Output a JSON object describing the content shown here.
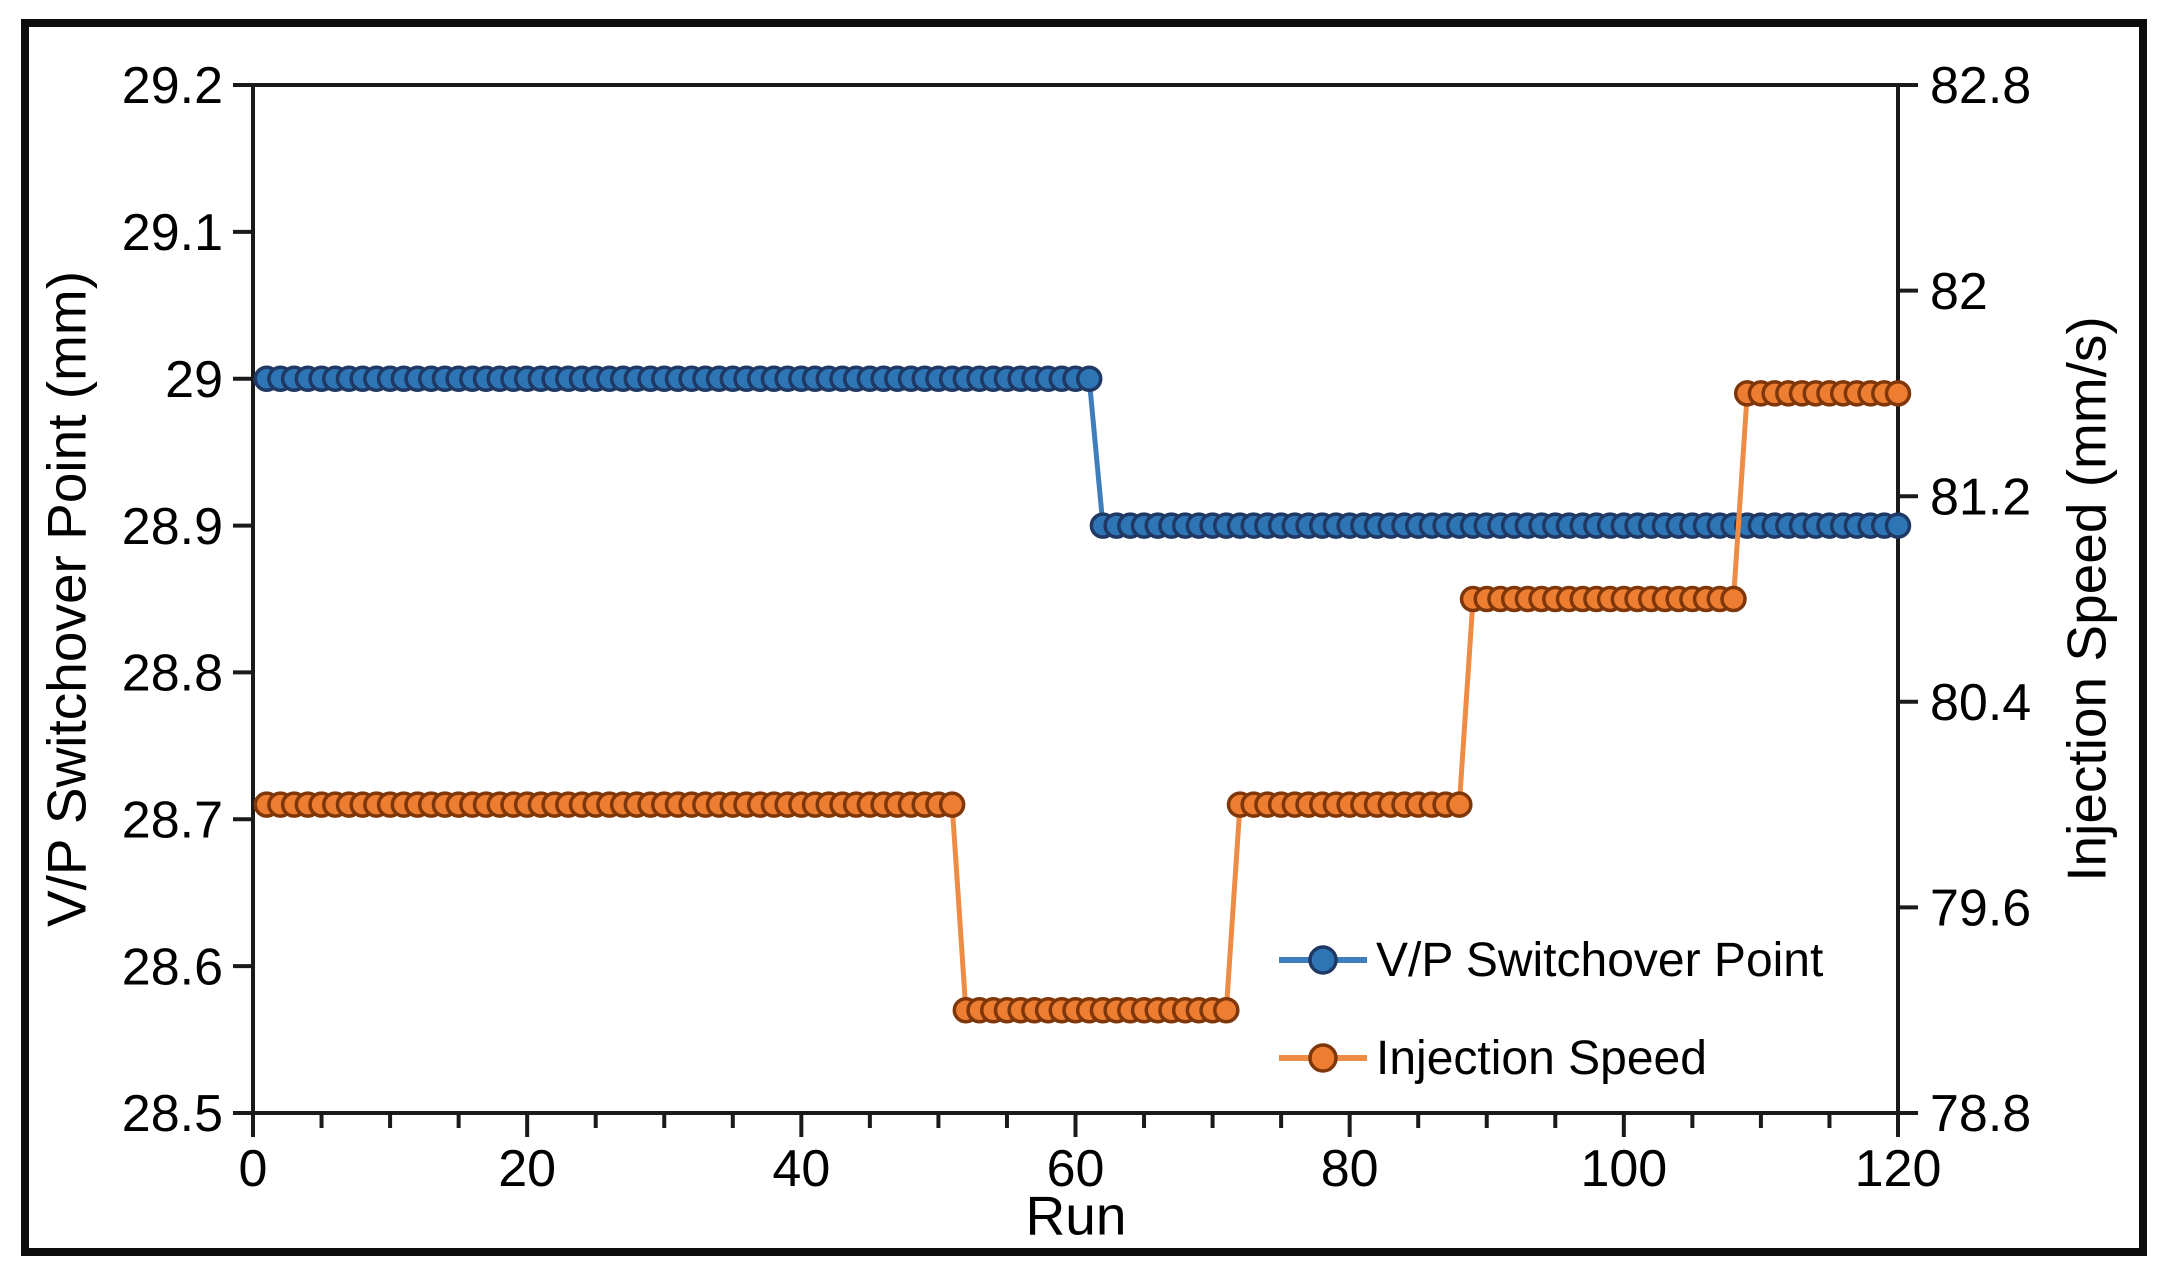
{
  "chart_data": {
    "type": "line",
    "title": "",
    "x": {
      "label": "Run",
      "min": 0,
      "max": 120,
      "major_ticks": [
        0,
        20,
        40,
        60,
        80,
        100,
        120
      ],
      "minor_tick_step": 5
    },
    "y_left": {
      "label": "V/P Switchover Point (mm)",
      "min": 28.5,
      "max": 29.2,
      "ticks": [
        "29.2",
        "29.1",
        "29",
        "28.9",
        "28.8",
        "28.7",
        "28.6",
        "28.5"
      ]
    },
    "y_right": {
      "label": "Injection Speed (mm/s)",
      "min": 78.8,
      "max": 82.8,
      "ticks": [
        "82.8",
        "82",
        "81.2",
        "80.4",
        "79.6",
        "78.8"
      ]
    },
    "grid": "off",
    "legend_position": "inside-lower-right",
    "series": [
      {
        "name": "V/P Switchover Point",
        "axis": "left",
        "marker": "circle",
        "line_color": "#3D7EBB",
        "marker_fill": "#2E75B6",
        "marker_stroke": "#1F3864",
        "segments": [
          {
            "from_run": 1,
            "to_run": 61,
            "value": 29.0
          },
          {
            "from_run": 62,
            "to_run": 120,
            "value": 28.9
          }
        ]
      },
      {
        "name": "Injection Speed",
        "axis": "right",
        "marker": "circle",
        "line_color": "#EE8B45",
        "marker_fill": "#ED7D31",
        "marker_stroke": "#7F3608",
        "segments": [
          {
            "from_run": 1,
            "to_run": 51,
            "value": 80.0
          },
          {
            "from_run": 52,
            "to_run": 71,
            "value": 79.2
          },
          {
            "from_run": 72,
            "to_run": 88,
            "value": 80.0
          },
          {
            "from_run": 89,
            "to_run": 108,
            "value": 80.8
          },
          {
            "from_run": 109,
            "to_run": 120,
            "value": 81.6
          }
        ]
      }
    ],
    "frame_color": "#0d0d0d",
    "axis_color": "#1a1a1a",
    "text_color": "#000000"
  }
}
